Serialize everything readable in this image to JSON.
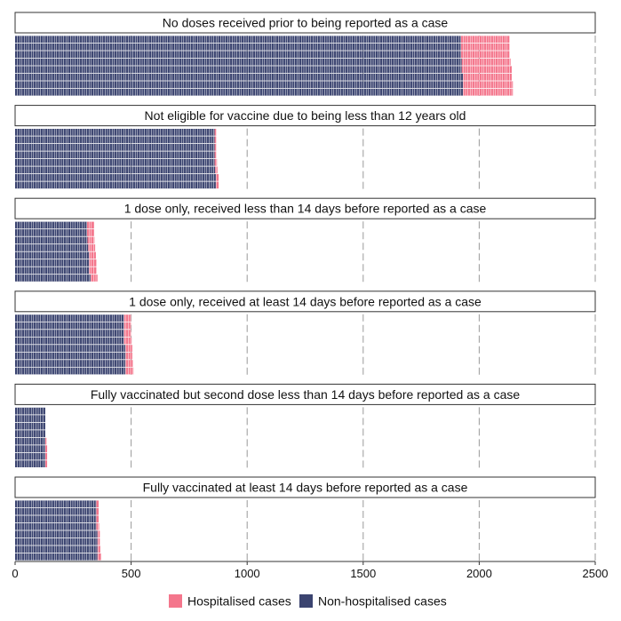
{
  "chart_data": {
    "type": "bar",
    "orientation": "horizontal",
    "style": "waffle-stacked",
    "xlim": [
      0,
      2500
    ],
    "x_ticks": [
      "0",
      "500",
      "1000",
      "1500",
      "2000",
      "2500"
    ],
    "x_tick_values": [
      0,
      500,
      1000,
      1500,
      2000,
      2500
    ],
    "grid": "vertical dashed",
    "legend_position": "bottom",
    "series": [
      {
        "name": "Hospitalised cases",
        "color": "#f4768c"
      },
      {
        "name": "Non-hospitalised cases",
        "color": "#3b4470"
      }
    ],
    "panels": [
      {
        "title": "No doses received prior to being reported as a case",
        "rows": [
          {
            "non_hospitalised": 1920,
            "hospitalised": 210
          },
          {
            "non_hospitalised": 1920,
            "hospitalised": 210
          },
          {
            "non_hospitalised": 1920,
            "hospitalised": 210
          },
          {
            "non_hospitalised": 1925,
            "hospitalised": 210
          },
          {
            "non_hospitalised": 1925,
            "hospitalised": 215
          },
          {
            "non_hospitalised": 1930,
            "hospitalised": 210
          },
          {
            "non_hospitalised": 1930,
            "hospitalised": 215
          },
          {
            "non_hospitalised": 1930,
            "hospitalised": 215
          }
        ]
      },
      {
        "title": "Not eligible for vaccine due to being less than 12 years old",
        "rows": [
          {
            "non_hospitalised": 860,
            "hospitalised": 8
          },
          {
            "non_hospitalised": 860,
            "hospitalised": 8
          },
          {
            "non_hospitalised": 860,
            "hospitalised": 8
          },
          {
            "non_hospitalised": 860,
            "hospitalised": 8
          },
          {
            "non_hospitalised": 860,
            "hospitalised": 10
          },
          {
            "non_hospitalised": 862,
            "hospitalised": 10
          },
          {
            "non_hospitalised": 865,
            "hospitalised": 12
          },
          {
            "non_hospitalised": 865,
            "hospitalised": 12
          }
        ]
      },
      {
        "title": "1 dose only, received less than 14 days before reported as a case",
        "rows": [
          {
            "non_hospitalised": 310,
            "hospitalised": 30
          },
          {
            "non_hospitalised": 310,
            "hospitalised": 30
          },
          {
            "non_hospitalised": 312,
            "hospitalised": 30
          },
          {
            "non_hospitalised": 315,
            "hospitalised": 30
          },
          {
            "non_hospitalised": 320,
            "hospitalised": 28
          },
          {
            "non_hospitalised": 320,
            "hospitalised": 30
          },
          {
            "non_hospitalised": 320,
            "hospitalised": 30
          },
          {
            "non_hospitalised": 325,
            "hospitalised": 30
          }
        ]
      },
      {
        "title": "1 dose only, received at least 14 days before reported as a case",
        "rows": [
          {
            "non_hospitalised": 470,
            "hospitalised": 30
          },
          {
            "non_hospitalised": 470,
            "hospitalised": 30
          },
          {
            "non_hospitalised": 470,
            "hospitalised": 30
          },
          {
            "non_hospitalised": 470,
            "hospitalised": 32
          },
          {
            "non_hospitalised": 475,
            "hospitalised": 30
          },
          {
            "non_hospitalised": 475,
            "hospitalised": 30
          },
          {
            "non_hospitalised": 475,
            "hospitalised": 32
          },
          {
            "non_hospitalised": 475,
            "hospitalised": 35
          }
        ]
      },
      {
        "title": "Fully vaccinated but second dose less than 14 days before reported as a case",
        "rows": [
          {
            "non_hospitalised": 130,
            "hospitalised": 0
          },
          {
            "non_hospitalised": 130,
            "hospitalised": 0
          },
          {
            "non_hospitalised": 130,
            "hospitalised": 0
          },
          {
            "non_hospitalised": 130,
            "hospitalised": 0
          },
          {
            "non_hospitalised": 130,
            "hospitalised": 5
          },
          {
            "non_hospitalised": 130,
            "hospitalised": 8
          },
          {
            "non_hospitalised": 130,
            "hospitalised": 8
          },
          {
            "non_hospitalised": 130,
            "hospitalised": 8
          }
        ]
      },
      {
        "title": "Fully vaccinated at least 14 days before reported as a case",
        "rows": [
          {
            "non_hospitalised": 350,
            "hospitalised": 10
          },
          {
            "non_hospitalised": 350,
            "hospitalised": 10
          },
          {
            "non_hospitalised": 350,
            "hospitalised": 10
          },
          {
            "non_hospitalised": 350,
            "hospitalised": 12
          },
          {
            "non_hospitalised": 355,
            "hospitalised": 10
          },
          {
            "non_hospitalised": 355,
            "hospitalised": 10
          },
          {
            "non_hospitalised": 355,
            "hospitalised": 12
          },
          {
            "non_hospitalised": 355,
            "hospitalised": 15
          }
        ]
      }
    ]
  }
}
